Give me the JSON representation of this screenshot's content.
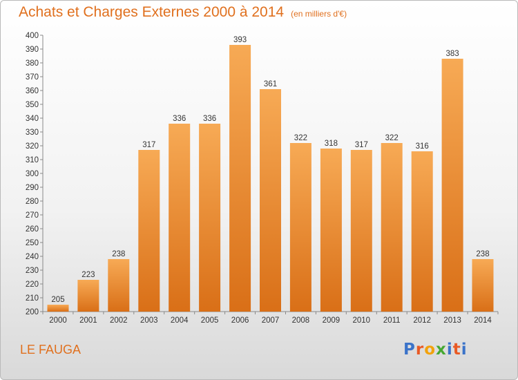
{
  "title": "Achats et Charges Externes 2000 à 2014",
  "subtitle": "(en milliers d'€)",
  "location": "LE FAUGA",
  "logo": {
    "letters": [
      "P",
      "r",
      "o",
      "x",
      "i",
      "t",
      "i"
    ],
    "colors": [
      "#3b73c9",
      "#e95a25",
      "#f2a20c",
      "#46a832",
      "#3b73c9",
      "#e95a25",
      "#3b73c9"
    ]
  },
  "colors": {
    "bar_top": "#f7aa55",
    "bar_bottom": "#d96f17",
    "text_accent": "#e0701e"
  },
  "chart_data": {
    "type": "bar",
    "categories": [
      "2000",
      "2001",
      "2002",
      "2003",
      "2004",
      "2005",
      "2006",
      "2007",
      "2008",
      "2009",
      "2010",
      "2011",
      "2012",
      "2013",
      "2014"
    ],
    "values": [
      205,
      223,
      238,
      317,
      336,
      336,
      393,
      361,
      322,
      318,
      317,
      322,
      316,
      383,
      238
    ],
    "ylim": [
      200,
      400
    ],
    "ytick_step": 10,
    "grid": false
  }
}
